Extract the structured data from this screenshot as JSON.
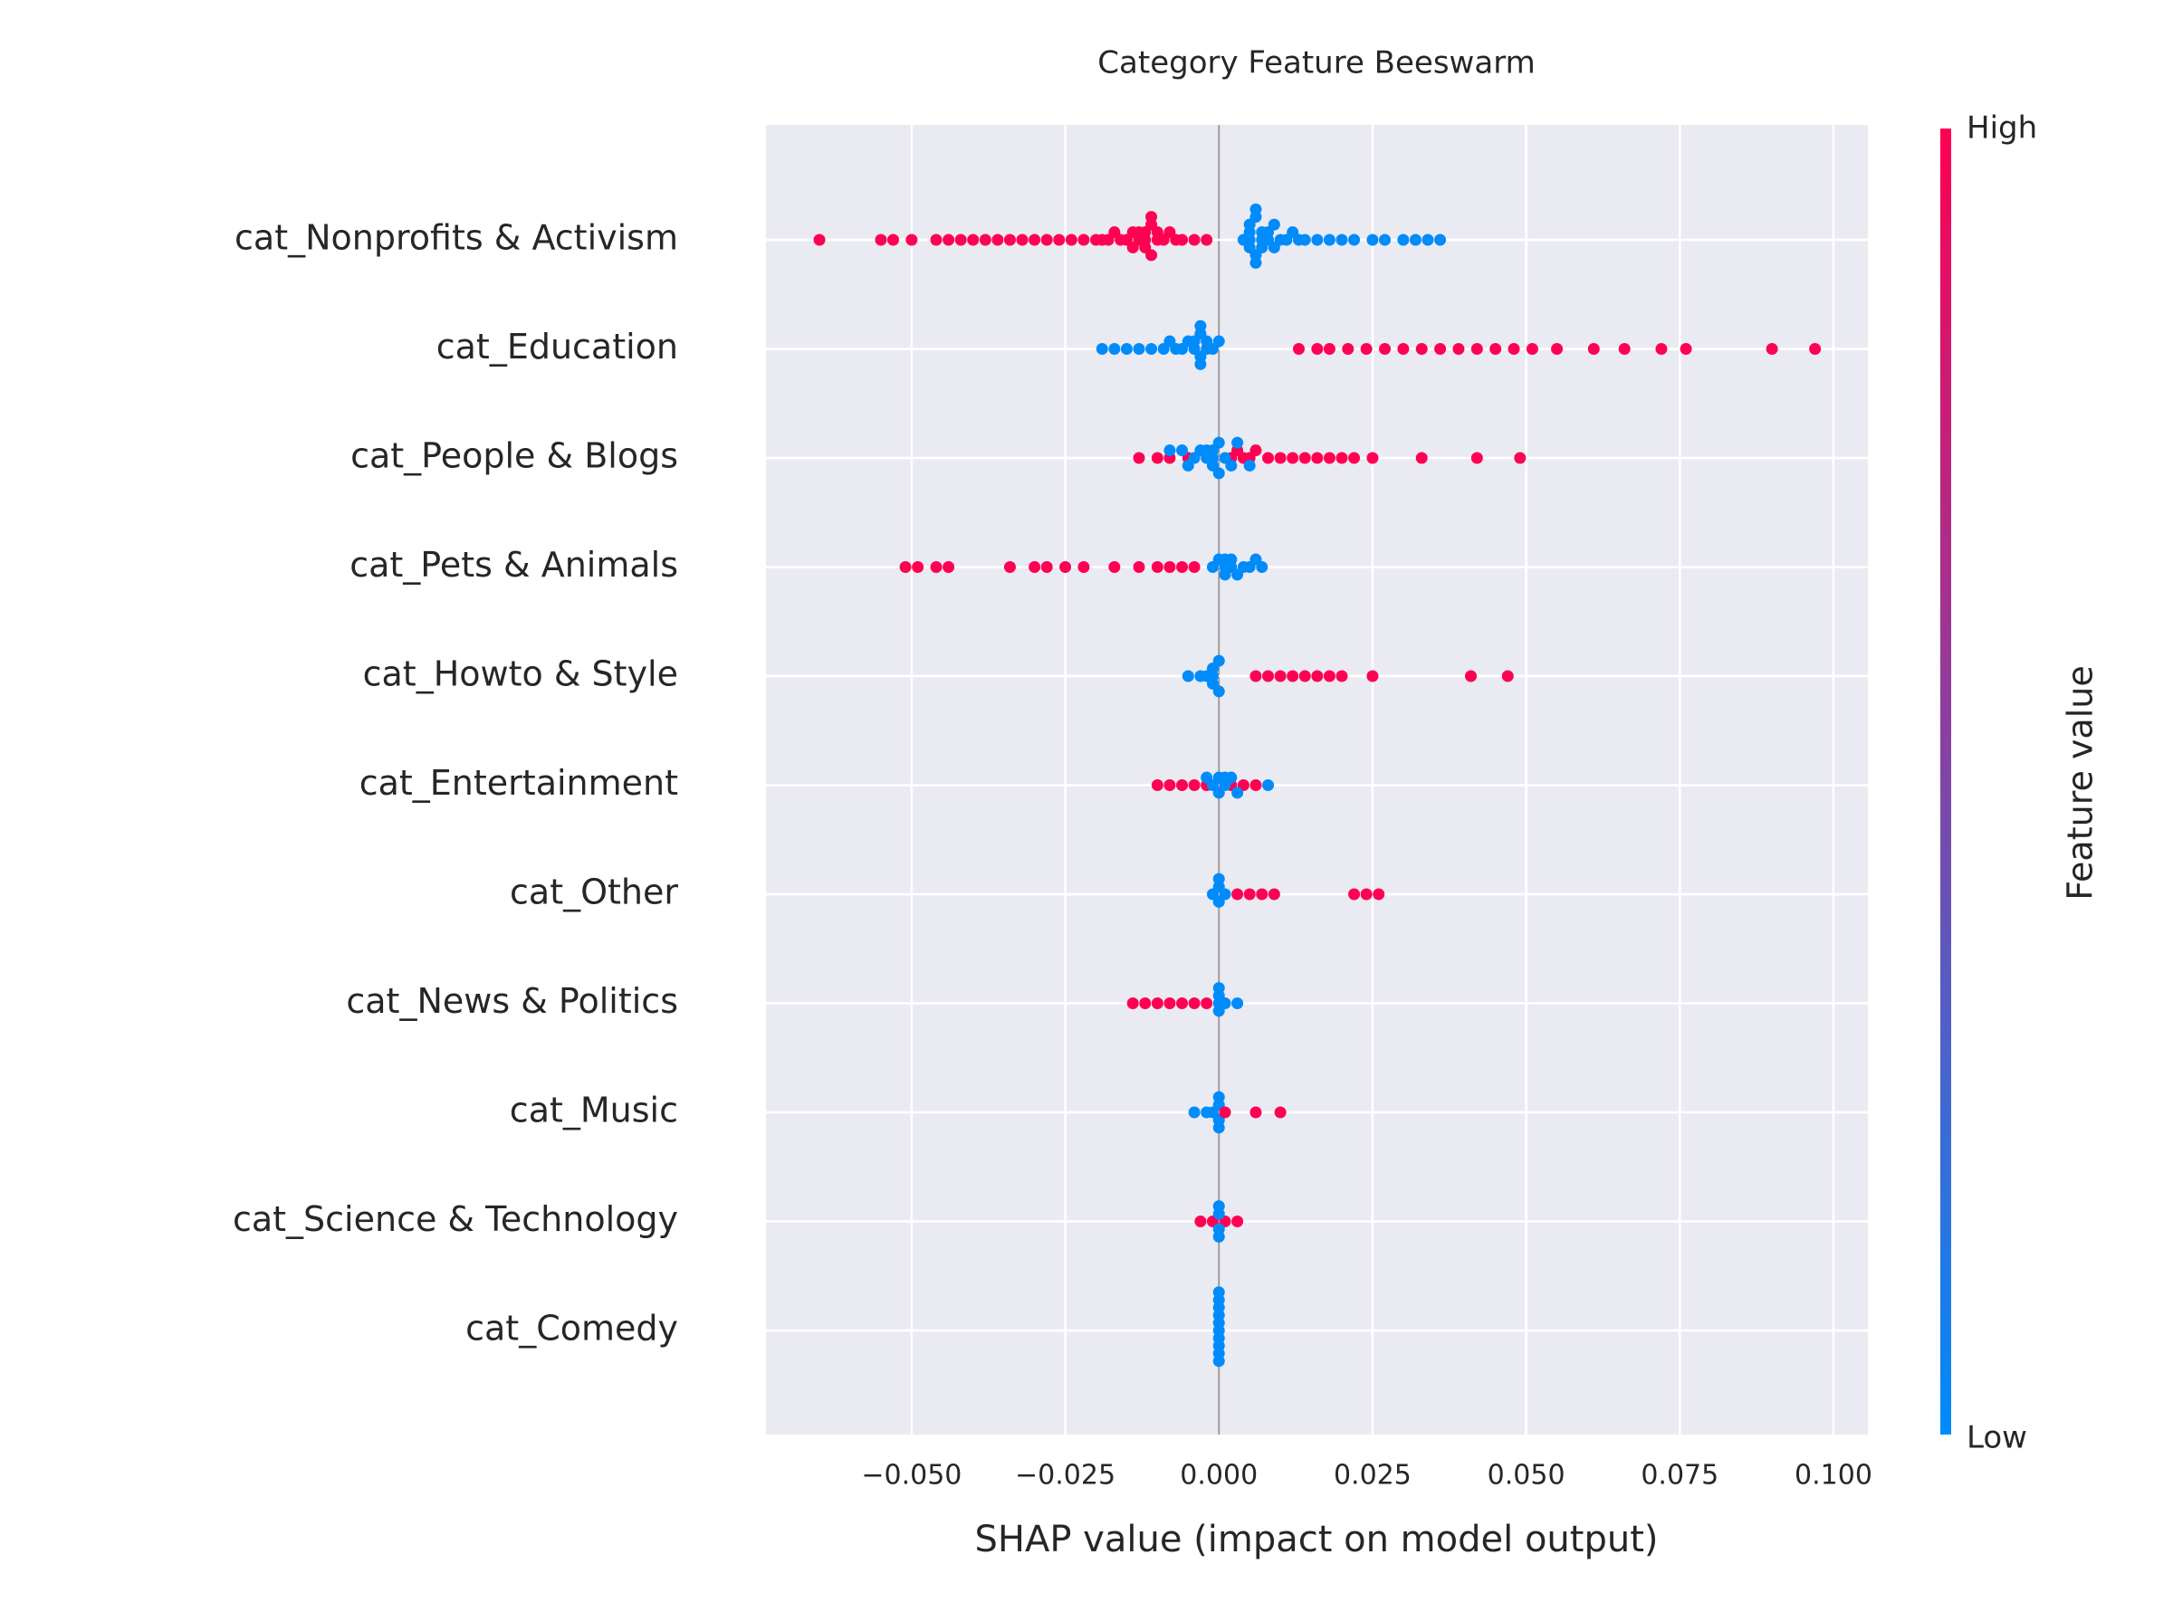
{
  "chart_data": {
    "type": "beeswarm",
    "title": "Category Feature Beeswarm",
    "xlabel": "SHAP value (impact on model output)",
    "xlim": [
      -0.0737,
      0.1056
    ],
    "xticks": [
      {
        "value": -0.05,
        "label": "−0.050"
      },
      {
        "value": -0.025,
        "label": "−0.025"
      },
      {
        "value": 0,
        "label": "0.000"
      },
      {
        "value": 0.025,
        "label": "0.025"
      },
      {
        "value": 0.05,
        "label": "0.050"
      },
      {
        "value": 0.075,
        "label": "0.075"
      },
      {
        "value": 0.1,
        "label": "0.100"
      }
    ],
    "grid": true,
    "colorbar": {
      "label": "Feature value",
      "high_label": "High",
      "low_label": "Low",
      "colors": [
        "#008bfb",
        "#ff0052"
      ]
    },
    "features": [
      {
        "name": "cat_Nonprofits & Activism",
        "values": [
          -0.065,
          -0.055,
          -0.053,
          -0.05,
          -0.046,
          -0.044,
          -0.042,
          -0.04,
          -0.038,
          -0.036,
          -0.034,
          -0.032,
          -0.03,
          -0.028,
          -0.026,
          -0.024,
          -0.022,
          -0.02,
          -0.019,
          -0.018,
          -0.017,
          -0.016,
          -0.015,
          -0.014,
          -0.014,
          -0.013,
          -0.013,
          -0.012,
          -0.012,
          -0.012,
          -0.011,
          -0.011,
          -0.011,
          -0.01,
          -0.01,
          -0.009,
          -0.008,
          -0.007,
          -0.006,
          -0.004,
          -0.002,
          0.004,
          0.005,
          0.005,
          0.005,
          0.005,
          0.006,
          0.006,
          0.006,
          0.006,
          0.007,
          0.007,
          0.007,
          0.008,
          0.008,
          0.009,
          0.009,
          0.01,
          0.011,
          0.012,
          0.013,
          0.014,
          0.016,
          0.018,
          0.02,
          0.022,
          0.025,
          0.027,
          0.03,
          0.032,
          0.034,
          0.036
        ],
        "feature_values": [
          1,
          1,
          1,
          1,
          1,
          1,
          1,
          1,
          1,
          1,
          1,
          1,
          1,
          1,
          1,
          1,
          1,
          1,
          1,
          1,
          1,
          1,
          1,
          1,
          1,
          1,
          1,
          1,
          1,
          1,
          1,
          1,
          1,
          1,
          1,
          1,
          1,
          1,
          1,
          1,
          1,
          0,
          0,
          0,
          0,
          0,
          0,
          0,
          0,
          0,
          0,
          0,
          0,
          0,
          0,
          0,
          0,
          0,
          0,
          0,
          0,
          0,
          0,
          0,
          0,
          0,
          0,
          0,
          0,
          0,
          0,
          0
        ]
      },
      {
        "name": "cat_Education",
        "values": [
          -0.019,
          -0.017,
          -0.015,
          -0.013,
          -0.011,
          -0.009,
          -0.008,
          -0.007,
          -0.006,
          -0.005,
          -0.004,
          -0.004,
          -0.003,
          -0.003,
          -0.003,
          -0.003,
          -0.002,
          -0.002,
          -0.001,
          0,
          0.013,
          0.016,
          0.018,
          0.021,
          0.024,
          0.027,
          0.03,
          0.033,
          0.036,
          0.039,
          0.042,
          0.045,
          0.048,
          0.051,
          0.055,
          0.061,
          0.066,
          0.072,
          0.076,
          0.09,
          0.097
        ],
        "feature_values": [
          0,
          0,
          0,
          0,
          0,
          0,
          0,
          0,
          0,
          0,
          0,
          0,
          0,
          0,
          0,
          0,
          0,
          0,
          0,
          0,
          1,
          1,
          1,
          1,
          1,
          1,
          1,
          1,
          1,
          1,
          1,
          1,
          1,
          1,
          1,
          1,
          1,
          1,
          1,
          1,
          1
        ]
      },
      {
        "name": "cat_People & Blogs",
        "values": [
          -0.013,
          -0.01,
          -0.008,
          -0.005,
          0.002,
          0.003,
          0.004,
          0.005,
          0.006,
          0.008,
          0.01,
          0.012,
          0.014,
          0.016,
          0.018,
          0.02,
          0.022,
          0.025,
          0.033,
          0.042,
          0.049,
          -0.008,
          -0.006,
          -0.005,
          -0.004,
          -0.003,
          -0.002,
          -0.002,
          -0.001,
          -0.001,
          -0.001,
          0,
          0,
          0.001,
          0.002,
          0.003,
          0.005
        ],
        "feature_values": [
          1,
          1,
          1,
          1,
          1,
          1,
          1,
          1,
          1,
          1,
          1,
          1,
          1,
          1,
          1,
          1,
          1,
          1,
          1,
          1,
          1,
          0,
          0,
          0,
          0,
          0,
          0,
          0,
          0,
          0,
          0,
          0,
          0,
          0,
          0,
          0,
          0
        ]
      },
      {
        "name": "cat_Pets & Animals",
        "values": [
          -0.051,
          -0.049,
          -0.046,
          -0.044,
          -0.034,
          -0.03,
          -0.028,
          -0.025,
          -0.022,
          -0.017,
          -0.013,
          -0.01,
          -0.008,
          -0.006,
          -0.004,
          -0.001,
          0,
          0.001,
          0.001,
          0.001,
          0.002,
          0.002,
          0.003,
          0.004,
          0.005,
          0.006,
          0.007
        ],
        "feature_values": [
          1,
          1,
          1,
          1,
          1,
          1,
          1,
          1,
          1,
          1,
          1,
          1,
          1,
          1,
          1,
          0,
          0,
          0,
          0,
          0,
          0,
          0,
          0,
          0,
          0,
          0,
          0
        ]
      },
      {
        "name": "cat_Howto & Style",
        "values": [
          -0.005,
          -0.003,
          -0.002,
          -0.001,
          -0.001,
          -0.001,
          0,
          0,
          0.006,
          0.008,
          0.01,
          0.012,
          0.014,
          0.016,
          0.018,
          0.02,
          0.025,
          0.041,
          0.047
        ],
        "feature_values": [
          0,
          0,
          0,
          0,
          0,
          0,
          0,
          0,
          1,
          1,
          1,
          1,
          1,
          1,
          1,
          1,
          1,
          1,
          1
        ]
      },
      {
        "name": "cat_Entertainment",
        "values": [
          -0.01,
          -0.008,
          -0.006,
          -0.004,
          -0.002,
          0.002,
          0.004,
          0.006,
          -0.002,
          -0.001,
          0,
          0,
          0.001,
          0.001,
          0.002,
          0.003,
          0.008
        ],
        "feature_values": [
          1,
          1,
          1,
          1,
          1,
          1,
          1,
          1,
          0,
          0,
          0,
          0,
          0,
          0,
          0,
          0,
          0
        ]
      },
      {
        "name": "cat_Other",
        "values": [
          -0.001,
          0,
          0,
          0,
          0.001,
          0.003,
          0.005,
          0.007,
          0.009,
          0.022,
          0.024,
          0.026
        ],
        "feature_values": [
          0,
          0,
          0,
          0,
          0,
          1,
          1,
          1,
          1,
          1,
          1,
          1
        ]
      },
      {
        "name": "cat_News & Politics",
        "values": [
          -0.014,
          -0.012,
          -0.01,
          -0.008,
          -0.006,
          -0.004,
          -0.002,
          0,
          0,
          0,
          0,
          0.001,
          0.003
        ],
        "feature_values": [
          1,
          1,
          1,
          1,
          1,
          1,
          1,
          0,
          0,
          0,
          0,
          0,
          0
        ]
      },
      {
        "name": "cat_Music",
        "values": [
          -0.004,
          -0.002,
          -0.001,
          0,
          0,
          0,
          0,
          0.001,
          0.006,
          0.01
        ],
        "feature_values": [
          0,
          0,
          0,
          0,
          0,
          0,
          0,
          1,
          1,
          1
        ]
      },
      {
        "name": "cat_Science & Technology",
        "values": [
          -0.003,
          -0.001,
          0.001,
          0.003,
          0,
          0,
          0,
          0
        ],
        "feature_values": [
          1,
          1,
          1,
          1,
          0,
          0,
          0,
          0
        ]
      },
      {
        "name": "cat_Comedy",
        "values": [
          0,
          0,
          0,
          0,
          0,
          0,
          0,
          0,
          0,
          0
        ],
        "feature_values": [
          0,
          0,
          0,
          0,
          0,
          0,
          0,
          0,
          0,
          0
        ]
      }
    ]
  }
}
